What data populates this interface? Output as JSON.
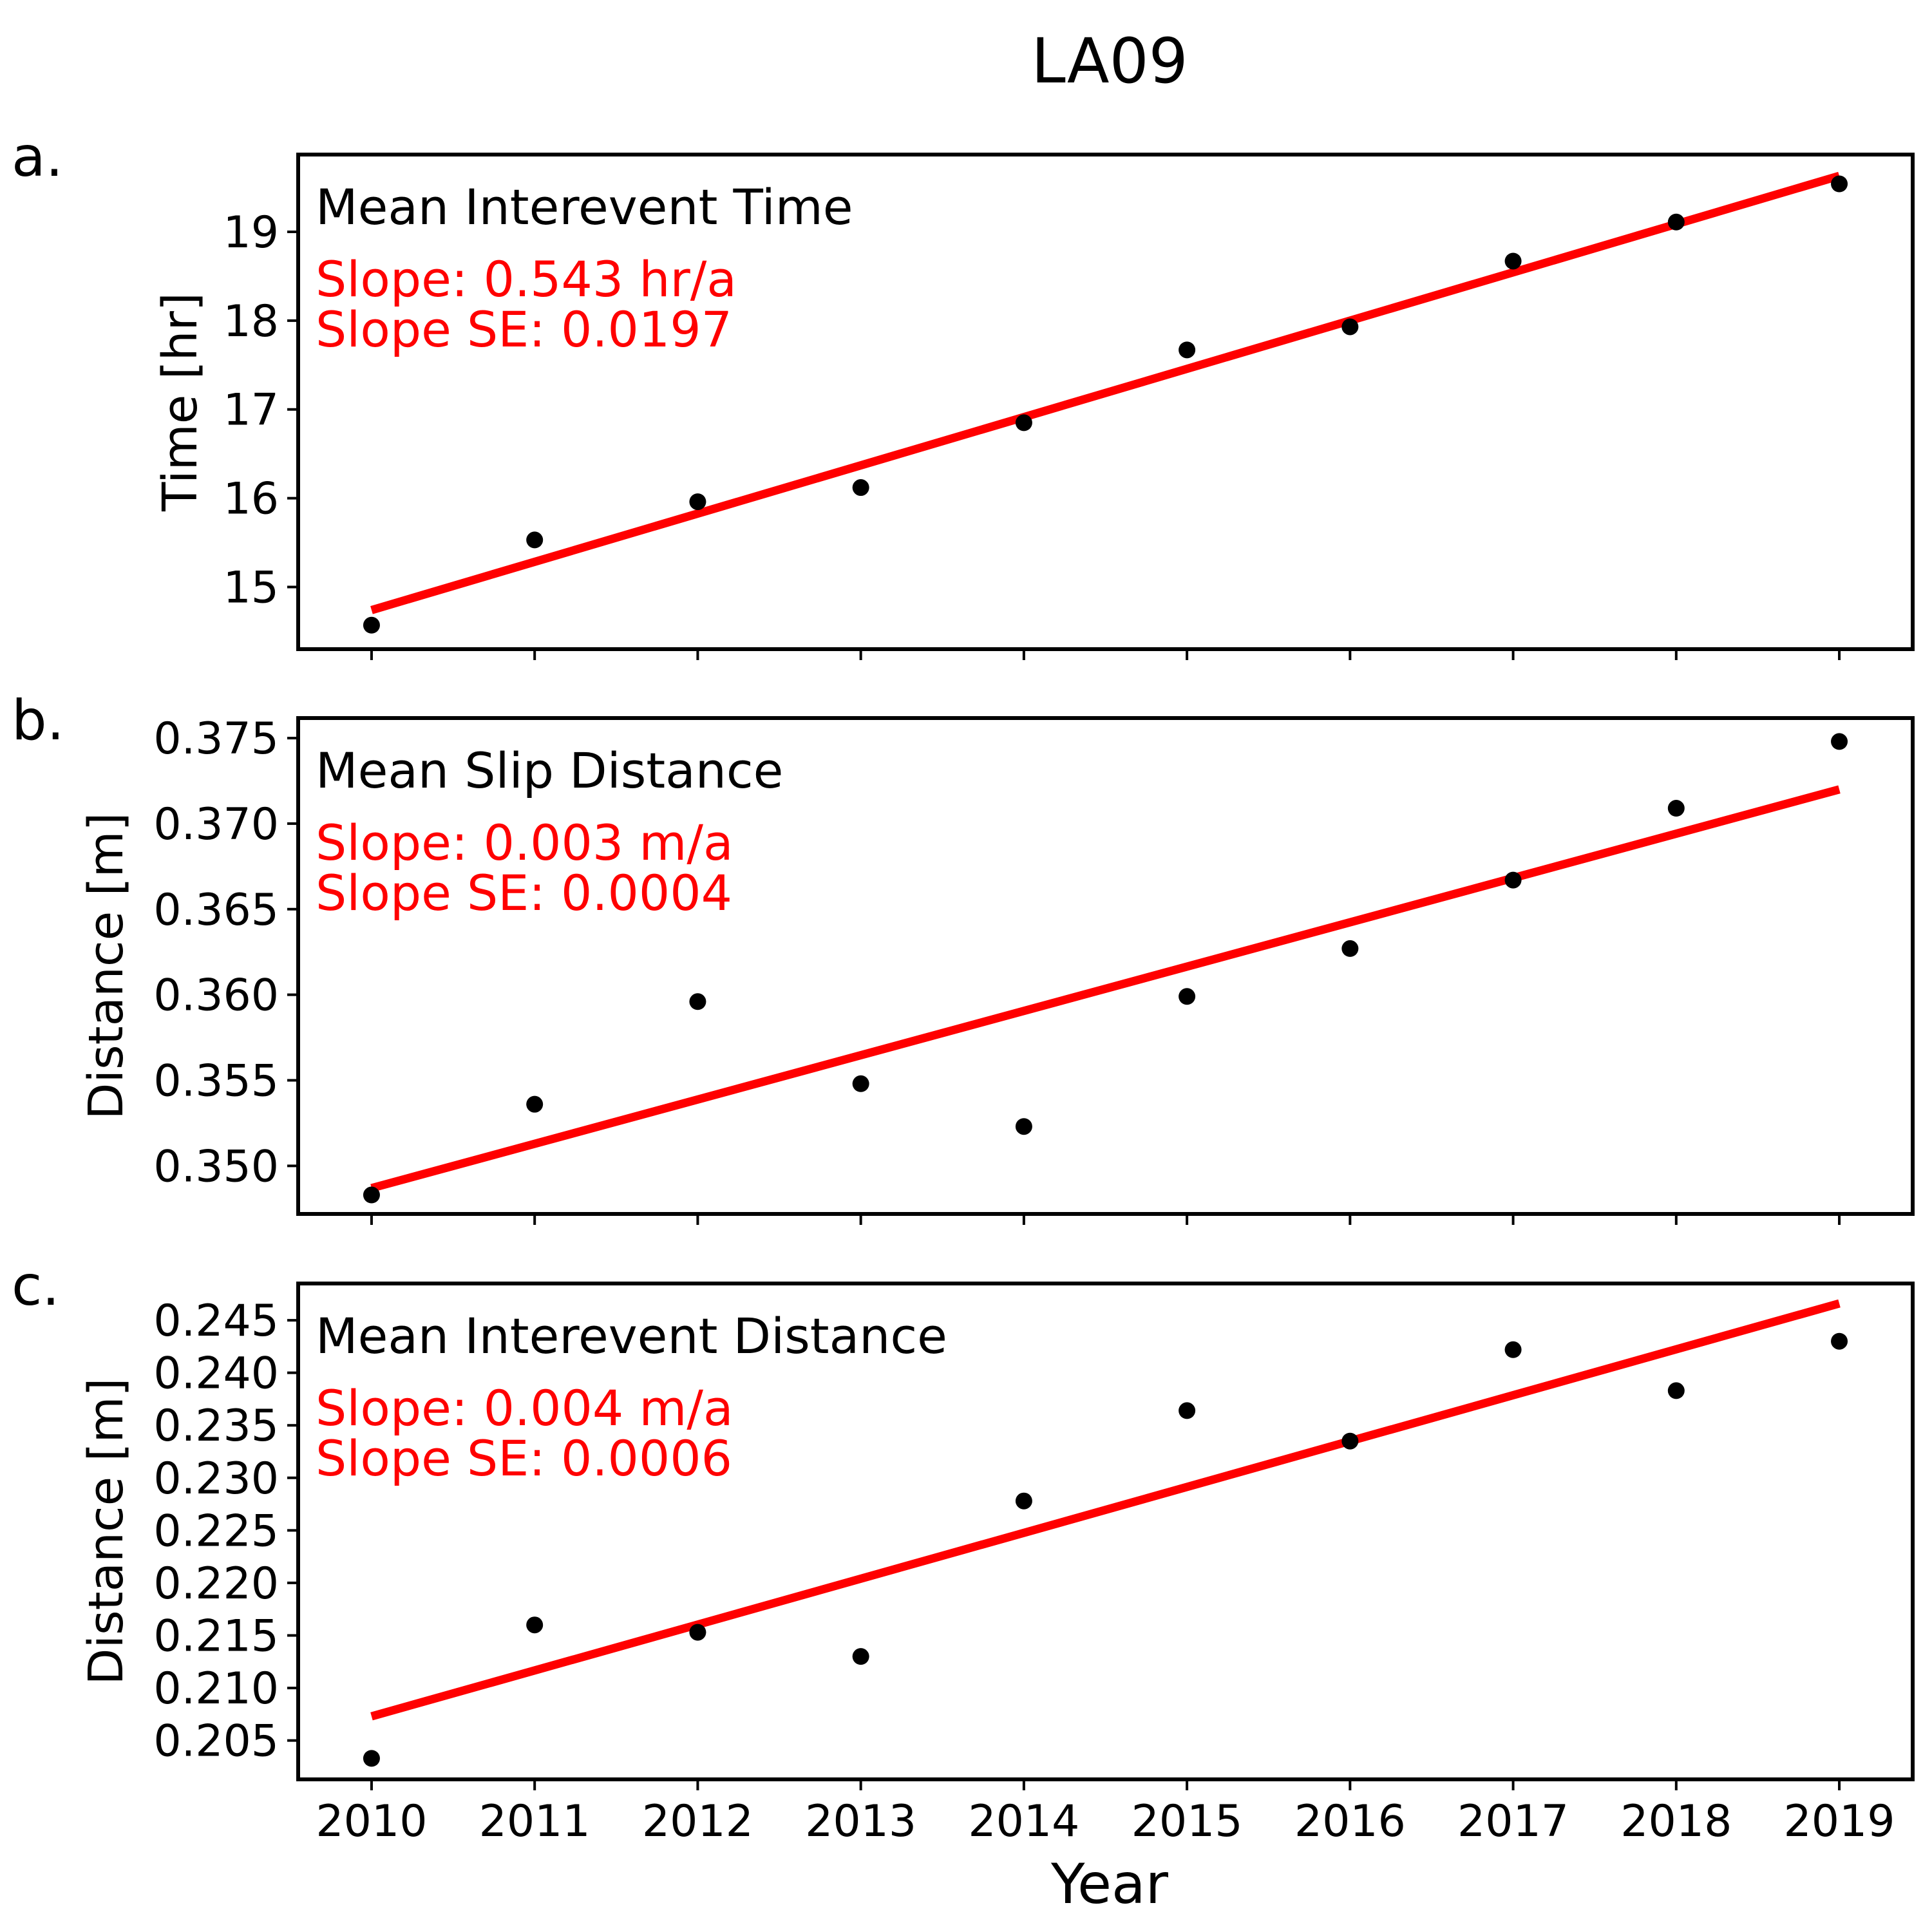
{
  "figure_title": "LA09",
  "xlabel": "Year",
  "chart_data": [
    {
      "type": "scatter",
      "panel_label": "a.",
      "inner_title": "Mean Interevent Time",
      "ylabel": "Time [hr]",
      "slope_text": "Slope: 0.543 hr/a",
      "slope_se_text": "Slope SE: 0.0197",
      "x": [
        2010,
        2011,
        2012,
        2013,
        2014,
        2015,
        2016,
        2017,
        2018,
        2019
      ],
      "y": [
        14.57,
        15.53,
        15.96,
        16.12,
        16.85,
        17.67,
        17.93,
        18.67,
        19.11,
        19.54
      ],
      "fit": {
        "x": [
          2010,
          2019
        ],
        "y": [
          14.74,
          19.63
        ]
      },
      "xlim": [
        2009.55,
        2019.45
      ],
      "ylim": [
        14.3,
        19.87
      ],
      "yticks": [
        15,
        16,
        17,
        18,
        19
      ],
      "ytick_labels": [
        "15",
        "16",
        "17",
        "18",
        "19"
      ],
      "grid": false
    },
    {
      "type": "scatter",
      "panel_label": "b.",
      "inner_title": "Mean Slip Distance",
      "ylabel": "Distance [m]",
      "slope_text": "Slope: 0.003 m/a",
      "slope_se_text": "Slope SE: 0.0004",
      "x": [
        2010,
        2011,
        2012,
        2013,
        2014,
        2015,
        2016,
        2017,
        2018,
        2019
      ],
      "y": [
        0.3483,
        0.3536,
        0.3596,
        0.3548,
        0.3523,
        0.3599,
        0.3627,
        0.3667,
        0.3709,
        0.3748
      ],
      "fit": {
        "x": [
          2010,
          2019
        ],
        "y": [
          0.3487,
          0.372
        ]
      },
      "xlim": [
        2009.55,
        2019.45
      ],
      "ylim": [
        0.34719,
        0.37617
      ],
      "yticks": [
        0.35,
        0.355,
        0.36,
        0.365,
        0.37,
        0.375
      ],
      "ytick_labels": [
        "0.350",
        "0.355",
        "0.360",
        "0.365",
        "0.370",
        "0.375"
      ],
      "grid": false
    },
    {
      "type": "scatter",
      "panel_label": "c.",
      "inner_title": "Mean Interevent Distance",
      "ylabel": "Distance [m]",
      "slope_text": "Slope: 0.004 m/a",
      "slope_se_text": "Slope SE: 0.0006",
      "x": [
        2010,
        2011,
        2012,
        2013,
        2014,
        2015,
        2016,
        2017,
        2018,
        2019
      ],
      "y": [
        0.2033,
        0.216,
        0.2153,
        0.213,
        0.2278,
        0.2364,
        0.2335,
        0.2422,
        0.2383,
        0.243
      ],
      "fit": {
        "x": [
          2010,
          2019
        ],
        "y": [
          0.2073,
          0.2466
        ]
      },
      "xlim": [
        2009.55,
        2019.45
      ],
      "ylim": [
        0.2013,
        0.2485
      ],
      "yticks": [
        0.205,
        0.21,
        0.215,
        0.22,
        0.225,
        0.23,
        0.235,
        0.24,
        0.245
      ],
      "ytick_labels": [
        "0.205",
        "0.210",
        "0.215",
        "0.220",
        "0.225",
        "0.230",
        "0.235",
        "0.240",
        "0.245"
      ],
      "grid": false
    }
  ],
  "colors": {
    "points": "#000000",
    "fit": "#ff0000",
    "axes": "#000000",
    "slope_text": "#ff0000"
  }
}
